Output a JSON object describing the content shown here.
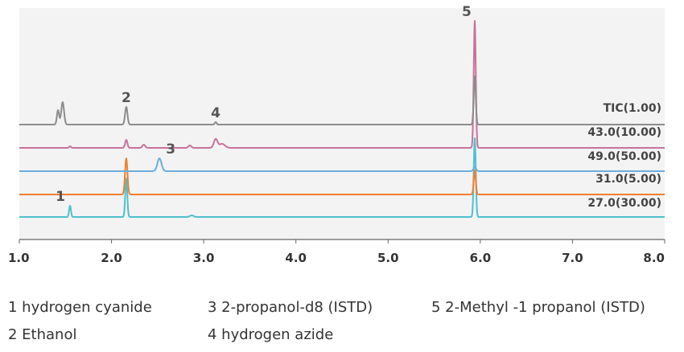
{
  "chart_data": {
    "type": "line",
    "title": "",
    "xlabel": "",
    "ylabel": "",
    "xlim": [
      1.0,
      8.0
    ],
    "x_ticks": [
      "1.0",
      "2.0",
      "3.0",
      "4.0",
      "5.0",
      "6.0",
      "7.0",
      "8.0"
    ],
    "grid": false,
    "series": [
      {
        "name": "TIC(1.00)",
        "color": "#8c8c8c",
        "peaks": [
          {
            "x": 1.42,
            "h": 18,
            "w": 0.012
          },
          {
            "x": 1.47,
            "h": 28,
            "w": 0.015
          },
          {
            "x": 2.16,
            "h": 22,
            "w": 0.013
          },
          {
            "x": 3.13,
            "h": 3,
            "w": 0.01
          },
          {
            "x": 5.94,
            "h": 60,
            "w": 0.011
          }
        ]
      },
      {
        "name": "43.0(10.00)",
        "color": "#c8729a",
        "peaks": [
          {
            "x": 1.55,
            "h": 2,
            "w": 0.01
          },
          {
            "x": 2.16,
            "h": 10,
            "w": 0.012
          },
          {
            "x": 2.35,
            "h": 4,
            "w": 0.015
          },
          {
            "x": 2.85,
            "h": 3,
            "w": 0.015
          },
          {
            "x": 3.13,
            "h": 11,
            "w": 0.02
          },
          {
            "x": 3.2,
            "h": 5,
            "w": 0.03
          },
          {
            "x": 5.94,
            "h": 158,
            "w": 0.011
          }
        ]
      },
      {
        "name": "49.0(50.00)",
        "color": "#6aaedc",
        "peaks": [
          {
            "x": 2.52,
            "h": 16,
            "w": 0.022
          },
          {
            "x": 5.94,
            "h": 5,
            "w": 0.014
          }
        ]
      },
      {
        "name": "31.0(5.00)",
        "color": "#f07f2f",
        "peaks": [
          {
            "x": 2.16,
            "h": 45,
            "w": 0.013
          },
          {
            "x": 5.94,
            "h": 30,
            "w": 0.011
          }
        ]
      },
      {
        "name": "27.0(30.00)",
        "color": "#4fc0cf",
        "peaks": [
          {
            "x": 1.55,
            "h": 14,
            "w": 0.01
          },
          {
            "x": 2.16,
            "h": 48,
            "w": 0.011
          },
          {
            "x": 2.87,
            "h": 2,
            "w": 0.02
          },
          {
            "x": 5.94,
            "h": 98,
            "w": 0.011
          }
        ]
      }
    ],
    "annotations": [
      {
        "label": "1",
        "x": 1.55,
        "series": 4
      },
      {
        "label": "2",
        "x": 2.16,
        "series": 0
      },
      {
        "label": "3",
        "x": 2.52,
        "series": 2
      },
      {
        "label": "4",
        "x": 3.13,
        "series": 0
      },
      {
        "label": "5",
        "x": 5.94,
        "series": 1
      }
    ]
  },
  "legend": {
    "col1": [
      "1 hydrogen cyanide",
      "2 Ethanol"
    ],
    "col2": [
      "3 2-propanol-d8 (ISTD)",
      "4 hydrogen azide"
    ],
    "col3": [
      "5 2-Methyl -1 propanol (ISTD)"
    ]
  }
}
